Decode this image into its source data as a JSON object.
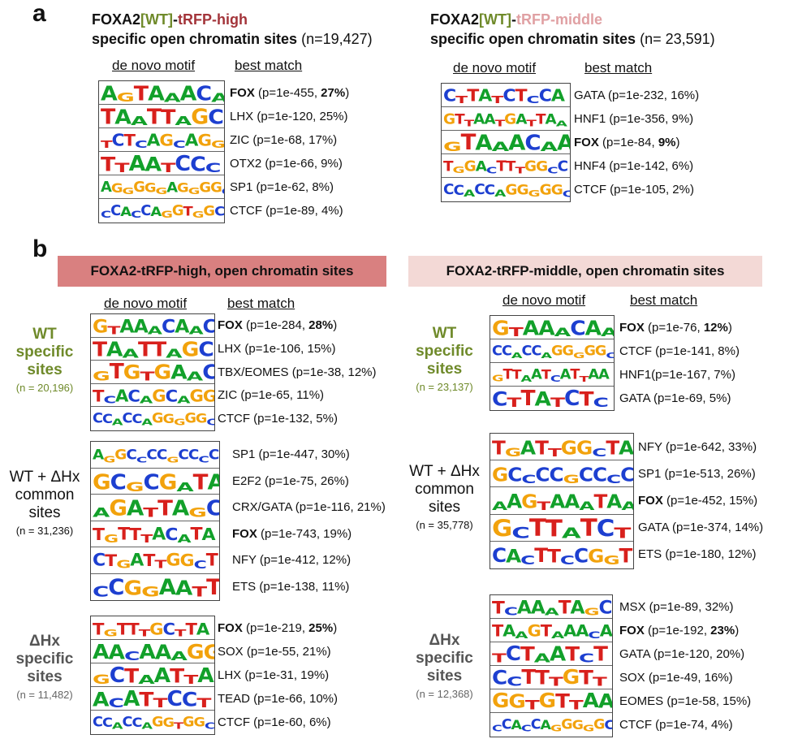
{
  "panel_a": {
    "letter": "a",
    "left": {
      "title_line1": {
        "p1": "FOXA2",
        "p2": "[WT]",
        "p3": "-",
        "p4": "tRFP-high"
      },
      "title_line2": {
        "bold": "specific open chromatin sites",
        "normal": " (n=19,427)"
      },
      "col_motif": "de novo motif",
      "col_match": "best match",
      "rows": [
        {
          "motif": "AGTAAACA",
          "match": "FOX",
          "detail": " (p=1e-455, ",
          "pct": "27%",
          "bold": true
        },
        {
          "motif": "TAATTAGC",
          "match": "LHX",
          "detail": " (p=1e-120, 25%)",
          "pct": "",
          "bold": false
        },
        {
          "motif": "TCTCAGCAGG",
          "match": "ZIC",
          "detail": " (p=1e-68, 17%)",
          "pct": "",
          "bold": false
        },
        {
          "motif": "TTAATCCC",
          "match": "OTX2",
          "detail": " (p=1e-66, 9%)",
          "pct": "",
          "bold": false
        },
        {
          "motif": "AGGGGGAGGGGC",
          "match": "SP1",
          "detail": " (p=1e-62, 8%)",
          "pct": "",
          "bold": false
        },
        {
          "motif": "CCACCAGGTGGC",
          "match": "CTCF",
          "detail": " (p=1e-89, 4%)",
          "pct": "",
          "bold": false
        }
      ]
    },
    "right": {
      "title_line1": {
        "p1": "FOXA2",
        "p2": "[WT]",
        "p3": "-",
        "p4": "tRFP-middle"
      },
      "title_line2": {
        "bold": "specific open chromatin sites",
        "normal": " (n= 23,591)"
      },
      "col_motif": "de novo motif",
      "col_match": "best match",
      "rows": [
        {
          "motif": "CTTATCTCCA",
          "match": "GATA",
          "detail": " (p=1e-232, 16%)",
          "pct": "",
          "bold": false
        },
        {
          "motif": "GTTAATGATTAA",
          "match": "HNF1",
          "detail": " (p=1e-356, 9%)",
          "pct": "",
          "bold": false
        },
        {
          "motif": "GTAAACAA",
          "match": "FOX",
          "detail": " (p=1e-84, ",
          "pct": "9%",
          "bold": true
        },
        {
          "motif": "TGGACTTTGGCC",
          "match": "HNF4",
          "detail": " (p=1e-142, 6%)",
          "pct": "",
          "bold": false
        },
        {
          "motif": "CCACCAGGGGGC",
          "match": "CTCF",
          "detail": " (p=1e-105, 2%)",
          "pct": "",
          "bold": false
        }
      ]
    }
  },
  "panel_b": {
    "letter": "b",
    "banner_left": "FOXA2-tRFP-high, open chromatin sites",
    "banner_right": "FOXA2-tRFP-middle, open chromatin sites",
    "col_motif": "de novo motif",
    "col_match": "best match",
    "groups": {
      "wt": {
        "l1": "WT",
        "l2": "specific",
        "l3": "sites"
      },
      "common": {
        "l1": "WT + ΔHx",
        "l2": "common",
        "l3": "sites"
      },
      "dhx": {
        "l1": "ΔHx",
        "l2": "specific",
        "l3": "sites"
      }
    },
    "left": {
      "wt_n": "(n = 20,196)",
      "common_n": "(n = 31,236)",
      "dhx_n": "(n = 11,482)",
      "wt_rows": [
        {
          "motif": "GTAAACAAC",
          "match": "FOX",
          "detail": " (p=1e-284, ",
          "pct": "28%",
          "bold": true
        },
        {
          "motif": "TAATTAGC",
          "match": "LHX",
          "detail": " (p=1e-106, 15%)",
          "pct": "",
          "bold": false
        },
        {
          "motif": "GTGTGAAC",
          "match": "TBX/EOMES",
          "detail": " (p=1e-38, 12%)",
          "pct": "",
          "bold": false
        },
        {
          "motif": "TCACAGCAGG",
          "match": "ZIC",
          "detail": " (p=1e-65, 11%)",
          "pct": "",
          "bold": false
        },
        {
          "motif": "CCACCAGGGGGC",
          "match": "CTCF",
          "detail": " (p=1e-132, 5%)",
          "pct": "",
          "bold": false
        }
      ],
      "common_rows": [
        {
          "motif": "AGGCCCCGCCCC",
          "match": "SP1",
          "detail": " (p=1e-447, 30%)",
          "pct": "",
          "bold": false
        },
        {
          "motif": "GCGCGATA",
          "match": "E2F2",
          "detail": " (p=1e-75, 26%)",
          "pct": "",
          "bold": false
        },
        {
          "motif": "AGATTAGC",
          "match": "CRX/GATA",
          "detail": " (p=1e-116, 21%)",
          "pct": "",
          "bold": false
        },
        {
          "motif": "TGTTTACATA",
          "match": "FOX",
          "detail": " (p=1e-743, 19%)",
          "pct": "",
          "bold": true,
          "bold_name_only": true
        },
        {
          "motif": "CTGATTGGCT",
          "match": "NFY",
          "detail": " (p=1e-412, 12%)",
          "pct": "",
          "bold": false
        },
        {
          "motif": "CCGGAATT",
          "match": "ETS",
          "detail": " (p=1e-138, 11%)",
          "pct": "",
          "bold": false
        }
      ],
      "dhx_rows": [
        {
          "motif": "TGTTTGCTTA",
          "match": "FOX",
          "detail": " (p=1e-219, ",
          "pct": "25%",
          "bold": true
        },
        {
          "motif": "AACAAAGG",
          "match": "SOX",
          "detail": " (p=1e-55, 21%)",
          "pct": "",
          "bold": false
        },
        {
          "motif": "GCTAATTA",
          "match": "LHX",
          "detail": " (p=1e-31, 19%)",
          "pct": "",
          "bold": false
        },
        {
          "motif": "ACATTCCT",
          "match": "TEAD",
          "detail": " (p=1e-66, 10%)",
          "pct": "",
          "bold": false
        },
        {
          "motif": "CCACCAGGTGGC",
          "match": "CTCF",
          "detail": " (p=1e-60, 6%)",
          "pct": "",
          "bold": false
        }
      ]
    },
    "right": {
      "wt_n": "(n = 23,137)",
      "common_n": "(n = 35,778)",
      "dhx_n": "(n = 12,368)",
      "wt_rows": [
        {
          "motif": "GTAAACAA",
          "match": "FOX",
          "detail": " (p=1e-76, ",
          "pct": "12%",
          "bold": true
        },
        {
          "motif": "CCACCAGGGGGC",
          "match": "CTCF",
          "detail": " (p=1e-141, 8%)",
          "pct": "",
          "bold": false
        },
        {
          "motif": "GTTAATCATTAA",
          "match": "HNF1",
          "detail": "(p=1e-167, 7%)",
          "pct": "",
          "bold": false
        },
        {
          "motif": "CTTATCTC",
          "match": "GATA",
          "detail": " (p=1e-69, 5%)",
          "pct": "",
          "bold": false
        }
      ],
      "common_rows": [
        {
          "motif": "TGATTGGCTA",
          "match": "NFY",
          "detail": " (p=1e-642, 33%)",
          "pct": "",
          "bold": false
        },
        {
          "motif": "GCCCCGCCCC",
          "match": "SP1",
          "detail": " (p=1e-513, 26%)",
          "pct": "",
          "bold": false
        },
        {
          "motif": "AAGTAAATAA",
          "match": "FOX",
          "detail": " (p=1e-452, 15%)",
          "pct": "",
          "bold": true,
          "bold_name_only": true
        },
        {
          "motif": "GCTTATCT",
          "match": "GATA",
          "detail": " (p=1e-374, 14%)",
          "pct": "",
          "bold": false
        },
        {
          "motif": "CACTTCCGGT",
          "match": "ETS",
          "detail": " (p=1e-180, 12%)",
          "pct": "",
          "bold": false
        }
      ],
      "dhx_rows": [
        {
          "motif": "TCAAATAGC",
          "match": "MSX",
          "detail": " (p=1e-89, 32%)",
          "pct": "",
          "bold": false
        },
        {
          "motif": "TAAGTAAACA",
          "match": "FOX",
          "detail": " (p=1e-192, ",
          "pct": "23%",
          "bold": true
        },
        {
          "motif": "TCTAATCT",
          "match": "GATA",
          "detail": " (p=1e-120, 20%)",
          "pct": "",
          "bold": false
        },
        {
          "motif": "CCTTTGTT",
          "match": "SOX",
          "detail": " (p=1e-49, 16%)",
          "pct": "",
          "bold": false
        },
        {
          "motif": "GGTGTTAA",
          "match": "EOMES",
          "detail": " (p=1e-58, 15%)",
          "pct": "",
          "bold": false
        },
        {
          "motif": "CCACCAGGGGGC",
          "match": "CTCF",
          "detail": " (p=1e-74, 4%)",
          "pct": "",
          "bold": false
        }
      ]
    }
  }
}
